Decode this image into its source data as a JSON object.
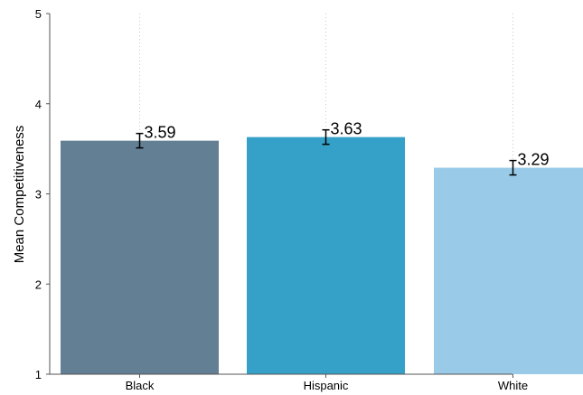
{
  "chart_data": {
    "type": "bar",
    "title": "",
    "xlabel": "",
    "ylabel": "Mean Competitiveness",
    "ylim": [
      1,
      5
    ],
    "yticks": [
      "1",
      "2",
      "3",
      "4",
      "5"
    ],
    "categories": [
      "Black",
      "Hispanic",
      "White"
    ],
    "values": [
      3.59,
      3.63,
      3.29
    ],
    "value_labels": [
      "3.59",
      "3.63",
      "3.29"
    ],
    "error_low": [
      3.51,
      3.55,
      3.21
    ],
    "error_high": [
      3.67,
      3.71,
      3.37
    ],
    "colors": [
      "#627f94",
      "#36a1c8",
      "#99cbe8"
    ],
    "grid": "vertical dotted",
    "legend": "none"
  }
}
